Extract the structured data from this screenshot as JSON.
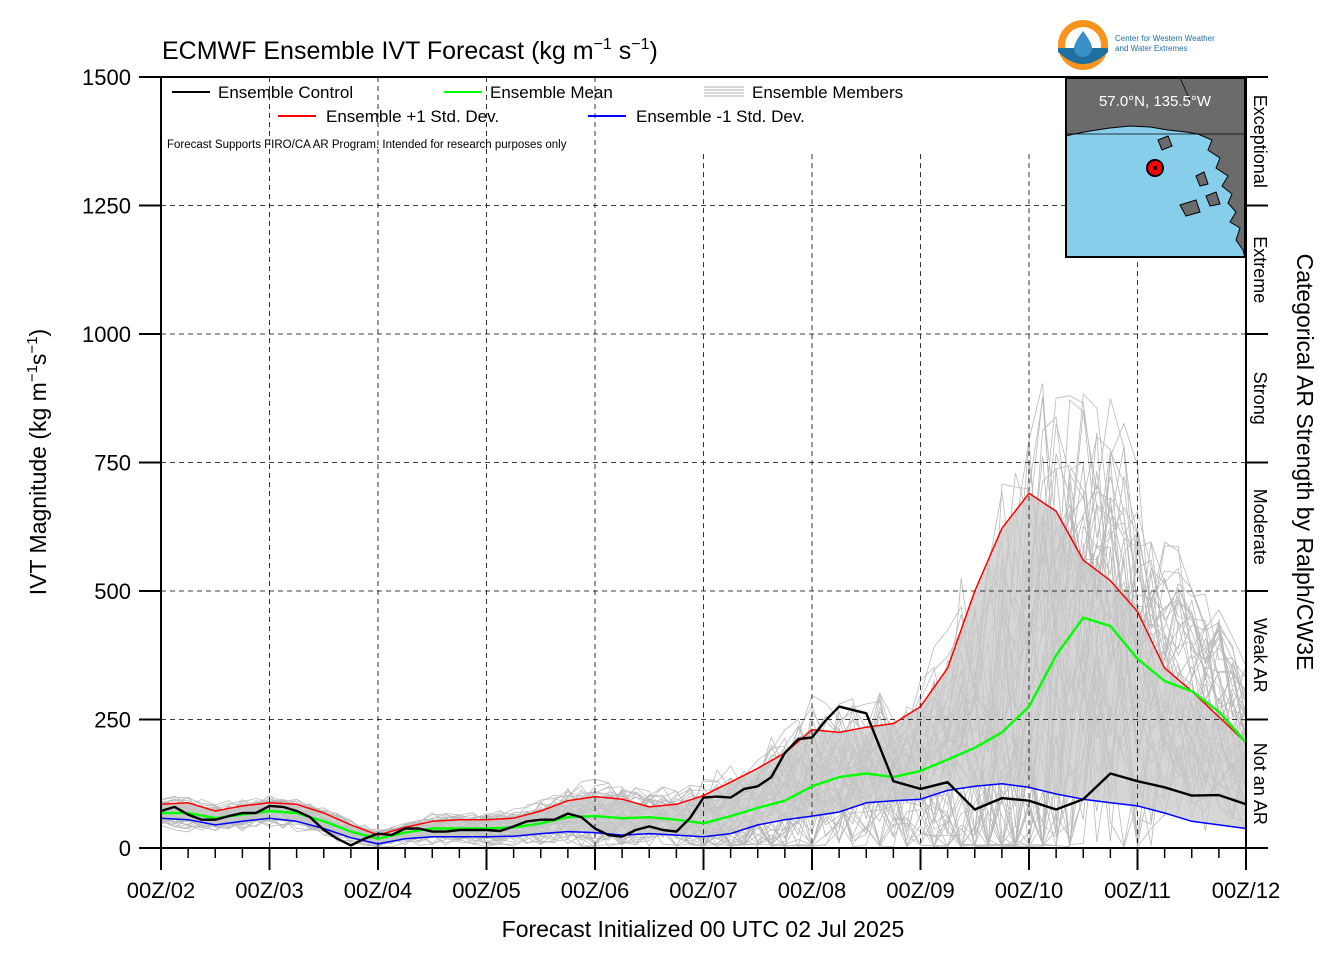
{
  "chart_data": {
    "type": "line",
    "title": {
      "main": "ECMWF Ensemble IVT Forecast (kg m",
      "exp1": "−1",
      "mid": " s",
      "exp2": "−1",
      "end": ")"
    },
    "xlabel": "Forecast Initialized 00 UTC 02 Jul 2025",
    "ylabel": {
      "main": "IVT Magnitude (kg m",
      "exp1": "−1",
      "mid": "s",
      "exp2": "−1",
      "end": ")"
    },
    "right_label": "Categorical AR Strength by Ralph/CW3E",
    "note": "Forecast Supports FIRO/CA AR Program. Intended for research purposes only",
    "x_range": [
      0,
      10
    ],
    "x_ticks": [
      "00Z/02",
      "00Z/03",
      "00Z/04",
      "00Z/05",
      "00Z/06",
      "00Z/07",
      "00Z/08",
      "00Z/09",
      "00Z/10",
      "00Z/11",
      "00Z/12"
    ],
    "ylim": [
      0,
      1500
    ],
    "y_ticks": [
      "0",
      "250",
      "500",
      "750",
      "1000",
      "1250",
      "1500"
    ],
    "grid": true,
    "legend": {
      "control": "Ensemble Control",
      "mean": "Ensemble Mean",
      "members": "Ensemble Members",
      "plus_sd": "Ensemble +1 Std. Dev.",
      "minus_sd": "Ensemble -1 Std. Dev."
    },
    "categories": [
      {
        "label": "Not an AR",
        "range": [
          0,
          250
        ]
      },
      {
        "label": "Weak AR",
        "range": [
          250,
          500
        ]
      },
      {
        "label": "Moderate",
        "range": [
          500,
          750
        ]
      },
      {
        "label": "Strong",
        "range": [
          750,
          1000
        ]
      },
      {
        "label": "Extreme",
        "range": [
          1000,
          1250
        ]
      },
      {
        "label": "Exceptional",
        "range": [
          1250,
          1500
        ]
      }
    ],
    "inset": {
      "location_label": "57.0°N, 135.5°W",
      "land_color": "#6b6b6b",
      "water_color": "#87ceeb",
      "marker_color": "#ff0000"
    },
    "logo": {
      "line1": "Center for Western Weather",
      "line2": "and Water Extremes"
    },
    "series": [
      {
        "name": "Ensemble Control",
        "color": "#000000",
        "x": [
          0,
          0.125,
          0.25,
          0.375,
          0.5,
          0.625,
          0.75,
          0.875,
          1,
          1.125,
          1.25,
          1.375,
          1.5,
          1.625,
          1.75,
          1.875,
          2,
          2.125,
          2.25,
          2.375,
          2.5,
          2.625,
          2.75,
          2.875,
          3,
          3.125,
          3.25,
          3.375,
          3.5,
          3.625,
          3.75,
          3.875,
          4,
          4.125,
          4.25,
          4.375,
          4.5,
          4.625,
          4.75,
          4.875,
          5,
          5.125,
          5.25,
          5.375,
          5.5,
          5.625,
          5.75,
          5.875,
          6,
          6.125,
          6.25,
          6.5,
          6.75,
          7,
          7.25,
          7.5,
          7.75,
          8,
          8.25,
          8.5,
          8.75,
          9,
          9.25,
          9.5,
          9.75,
          10
        ],
        "values": [
          72,
          80,
          65,
          55,
          55,
          62,
          68,
          68,
          82,
          80,
          72,
          60,
          35,
          18,
          5,
          18,
          28,
          25,
          38,
          38,
          32,
          32,
          35,
          35,
          35,
          33,
          42,
          52,
          55,
          55,
          67,
          60,
          38,
          25,
          22,
          35,
          42,
          35,
          32,
          58,
          98,
          100,
          98,
          115,
          120,
          138,
          185,
          212,
          215,
          248,
          275,
          262,
          130,
          115,
          128,
          75,
          97,
          92,
          75,
          95,
          145,
          130,
          118,
          102,
          103,
          85
        ]
      },
      {
        "name": "Ensemble Mean",
        "color": "#00ff00",
        "x": [
          0,
          0.25,
          0.5,
          0.75,
          1,
          1.25,
          1.5,
          1.75,
          2,
          2.25,
          2.5,
          2.75,
          3,
          3.25,
          3.5,
          3.75,
          4,
          4.25,
          4.5,
          4.75,
          5,
          5.25,
          5.5,
          5.75,
          6,
          6.25,
          6.5,
          6.75,
          7,
          7.25,
          7.5,
          7.75,
          8,
          8.25,
          8.5,
          8.75,
          9,
          9.25,
          9.5,
          9.75,
          10
        ],
        "values": [
          68,
          68,
          58,
          65,
          72,
          68,
          52,
          32,
          18,
          30,
          38,
          38,
          38,
          40,
          48,
          60,
          62,
          58,
          60,
          55,
          48,
          62,
          78,
          92,
          120,
          138,
          145,
          138,
          150,
          172,
          195,
          225,
          275,
          375,
          448,
          432,
          368,
          325,
          305,
          265,
          205
        ]
      },
      {
        "name": "Ensemble +1 Std. Dev.",
        "color": "#ff0000",
        "x": [
          0,
          0.25,
          0.5,
          0.75,
          1,
          1.25,
          1.5,
          1.75,
          2,
          2.25,
          2.5,
          2.75,
          3,
          3.25,
          3.5,
          3.75,
          4,
          4.25,
          4.5,
          4.75,
          5,
          5.25,
          5.5,
          5.75,
          6,
          6.25,
          6.5,
          6.75,
          7,
          7.25,
          7.5,
          7.75,
          8,
          8.25,
          8.5,
          8.75,
          9,
          9.25,
          9.5,
          9.75,
          10
        ],
        "values": [
          85,
          88,
          72,
          82,
          88,
          85,
          68,
          45,
          25,
          40,
          52,
          55,
          55,
          58,
          72,
          92,
          100,
          95,
          80,
          85,
          102,
          128,
          155,
          185,
          230,
          225,
          235,
          242,
          275,
          350,
          500,
          622,
          690,
          655,
          560,
          520,
          460,
          350,
          305,
          255,
          205
        ]
      },
      {
        "name": "Ensemble -1 Std. Dev.",
        "color": "#0000ff",
        "x": [
          0,
          0.25,
          0.5,
          0.75,
          1,
          1.25,
          1.5,
          1.75,
          2,
          2.25,
          2.5,
          2.75,
          3,
          3.25,
          3.5,
          3.75,
          4,
          4.25,
          4.5,
          4.75,
          5,
          5.25,
          5.5,
          5.75,
          6,
          6.25,
          6.5,
          6.75,
          7,
          7.25,
          7.5,
          7.75,
          8,
          8.25,
          8.5,
          8.75,
          9,
          9.25,
          9.5,
          9.75,
          10
        ],
        "values": [
          58,
          55,
          45,
          52,
          58,
          52,
          38,
          20,
          8,
          18,
          22,
          22,
          22,
          23,
          28,
          32,
          30,
          25,
          28,
          25,
          22,
          28,
          45,
          55,
          62,
          70,
          88,
          92,
          95,
          112,
          120,
          125,
          118,
          105,
          95,
          88,
          82,
          68,
          52,
          45,
          38
        ]
      }
    ]
  }
}
